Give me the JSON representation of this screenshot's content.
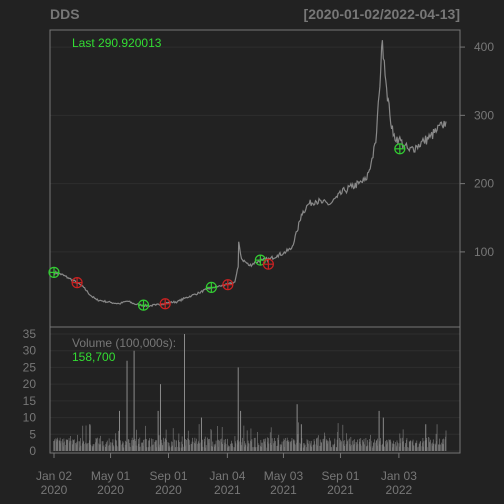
{
  "header": {
    "symbol": "DDS",
    "date_range": "[2020-01-02/2022-04-13]"
  },
  "colors": {
    "background": "#222222",
    "panel_border": "#777777",
    "text_muted": "#777777",
    "grid": "#2e2e2e",
    "price_line": "#888888",
    "volume_bar": "#777777",
    "label_green": "#33dd33",
    "buy_marker": "#33cc33",
    "sell_marker": "#cc2222"
  },
  "chart_data": [
    {
      "type": "line",
      "panel": "price",
      "title": "DDS",
      "subtitle": "[2020-01-02/2022-04-13]",
      "annotation": "Last 290.920013",
      "y_ticks": [
        100,
        200,
        300,
        400
      ],
      "ylim": [
        -10,
        425
      ],
      "x_tick_labels": [
        {
          "date": "2020-01-02",
          "line1": "Jan 02",
          "line2": "2020"
        },
        {
          "date": "2020-05-01",
          "line1": "May 01",
          "line2": "2020"
        },
        {
          "date": "2020-09-01",
          "line1": "Sep 01",
          "line2": "2020"
        },
        {
          "date": "2021-01-04",
          "line1": "Jan 04",
          "line2": "2021"
        },
        {
          "date": "2021-05-03",
          "line1": "May 03",
          "line2": "2021"
        },
        {
          "date": "2021-09-01",
          "line1": "Sep 01",
          "line2": "2021"
        },
        {
          "date": "2022-01-03",
          "line1": "Jan 03",
          "line2": "2022"
        }
      ],
      "series": [
        {
          "points": [
            [
              "2020-01-02",
              70
            ],
            [
              "2020-01-15",
              68
            ],
            [
              "2020-02-01",
              62
            ],
            [
              "2020-02-20",
              55
            ],
            [
              "2020-03-05",
              48
            ],
            [
              "2020-03-20",
              36
            ],
            [
              "2020-04-01",
              30
            ],
            [
              "2020-04-15",
              28
            ],
            [
              "2020-05-01",
              26
            ],
            [
              "2020-05-20",
              24
            ],
            [
              "2020-06-05",
              28
            ],
            [
              "2020-06-20",
              24
            ],
            [
              "2020-07-05",
              22
            ],
            [
              "2020-07-20",
              21
            ],
            [
              "2020-08-05",
              22
            ],
            [
              "2020-08-20",
              24
            ],
            [
              "2020-09-05",
              26
            ],
            [
              "2020-09-20",
              27
            ],
            [
              "2020-10-05",
              32
            ],
            [
              "2020-10-20",
              36
            ],
            [
              "2020-11-05",
              40
            ],
            [
              "2020-11-20",
              45
            ],
            [
              "2020-12-05",
              48
            ],
            [
              "2020-12-20",
              50
            ],
            [
              "2021-01-04",
              52
            ],
            [
              "2021-01-20",
              56
            ],
            [
              "2021-01-27",
              78
            ],
            [
              "2021-01-28",
              115
            ],
            [
              "2021-02-03",
              90
            ],
            [
              "2021-02-20",
              80
            ],
            [
              "2021-03-05",
              85
            ],
            [
              "2021-03-20",
              88
            ],
            [
              "2021-04-05",
              90
            ],
            [
              "2021-04-20",
              95
            ],
            [
              "2021-05-03",
              98
            ],
            [
              "2021-05-20",
              105
            ],
            [
              "2021-06-01",
              130
            ],
            [
              "2021-06-10",
              155
            ],
            [
              "2021-06-25",
              170
            ],
            [
              "2021-07-10",
              175
            ],
            [
              "2021-07-25",
              172
            ],
            [
              "2021-08-10",
              170
            ],
            [
              "2021-08-25",
              180
            ],
            [
              "2021-09-10",
              190
            ],
            [
              "2021-09-25",
              195
            ],
            [
              "2021-10-10",
              200
            ],
            [
              "2021-10-25",
              205
            ],
            [
              "2021-11-05",
              230
            ],
            [
              "2021-11-15",
              260
            ],
            [
              "2021-11-22",
              330
            ],
            [
              "2021-11-29",
              410
            ],
            [
              "2021-12-03",
              380
            ],
            [
              "2021-12-08",
              340
            ],
            [
              "2021-12-15",
              300
            ],
            [
              "2021-12-22",
              270
            ],
            [
              "2022-01-03",
              265
            ],
            [
              "2022-01-15",
              255
            ],
            [
              "2022-01-25",
              248
            ],
            [
              "2022-02-10",
              255
            ],
            [
              "2022-02-25",
              262
            ],
            [
              "2022-03-10",
              268
            ],
            [
              "2022-03-25",
              278
            ],
            [
              "2022-04-05",
              285
            ],
            [
              "2022-04-13",
              290.92
            ]
          ]
        }
      ],
      "buy_signals": [
        {
          "date": "2020-01-02",
          "value": 70
        },
        {
          "date": "2020-07-10",
          "value": 22
        },
        {
          "date": "2020-12-01",
          "value": 48
        },
        {
          "date": "2021-03-15",
          "value": 88
        },
        {
          "date": "2022-01-05",
          "value": 251
        }
      ],
      "sell_signals": [
        {
          "date": "2020-02-20",
          "value": 55
        },
        {
          "date": "2020-08-25",
          "value": 24
        },
        {
          "date": "2021-01-05",
          "value": 52
        },
        {
          "date": "2021-04-01",
          "value": 82
        }
      ]
    },
    {
      "type": "bar",
      "panel": "volume",
      "label": "Volume (100,000s):",
      "last_value": "158,700",
      "y_ticks": [
        0,
        5,
        10,
        15,
        20,
        25,
        30,
        35
      ],
      "ylim": [
        0,
        35
      ],
      "spikes": [
        {
          "date": "2020-01-02",
          "value": 3
        },
        {
          "date": "2020-03-18",
          "value": 8
        },
        {
          "date": "2020-05-20",
          "value": 12
        },
        {
          "date": "2020-06-05",
          "value": 27
        },
        {
          "date": "2020-06-20",
          "value": 30
        },
        {
          "date": "2020-08-10",
          "value": 12
        },
        {
          "date": "2020-08-15",
          "value": 20
        },
        {
          "date": "2020-10-05",
          "value": 35
        },
        {
          "date": "2020-11-10",
          "value": 10
        },
        {
          "date": "2021-01-27",
          "value": 25
        },
        {
          "date": "2021-02-01",
          "value": 12
        },
        {
          "date": "2021-06-01",
          "value": 14
        },
        {
          "date": "2021-06-10",
          "value": 8
        },
        {
          "date": "2021-11-22",
          "value": 12
        },
        {
          "date": "2021-12-01",
          "value": 10
        },
        {
          "date": "2022-03-01",
          "value": 8
        }
      ]
    }
  ]
}
